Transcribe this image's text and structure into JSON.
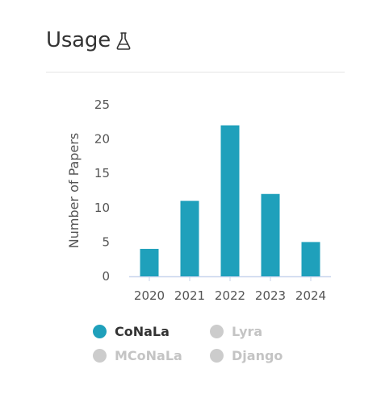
{
  "header": {
    "title": "Usage",
    "icon": "flask-icon"
  },
  "chart_data": {
    "type": "bar",
    "categories": [
      "2020",
      "2021",
      "2022",
      "2023",
      "2024"
    ],
    "series": [
      {
        "name": "CoNaLa",
        "values": [
          4,
          11,
          22,
          12,
          5
        ]
      }
    ],
    "ylabel": "Number of Papers",
    "xlabel": "",
    "ylim": [
      0,
      25
    ],
    "yticks": [
      0,
      5,
      10,
      15,
      20,
      25
    ],
    "grid": false,
    "legend_position": "bottom",
    "bar_color": "#1fa0bb"
  },
  "legend": {
    "items": [
      {
        "label": "CoNaLa",
        "active": true,
        "color": "#1fa0bb"
      },
      {
        "label": "Lyra",
        "active": false,
        "color": "#cccccc"
      },
      {
        "label": "MCoNaLa",
        "active": false,
        "color": "#cccccc"
      },
      {
        "label": "Django",
        "active": false,
        "color": "#cccccc"
      }
    ],
    "active_text_color": "#333333",
    "inactive_text_color": "#c4c4c4"
  }
}
